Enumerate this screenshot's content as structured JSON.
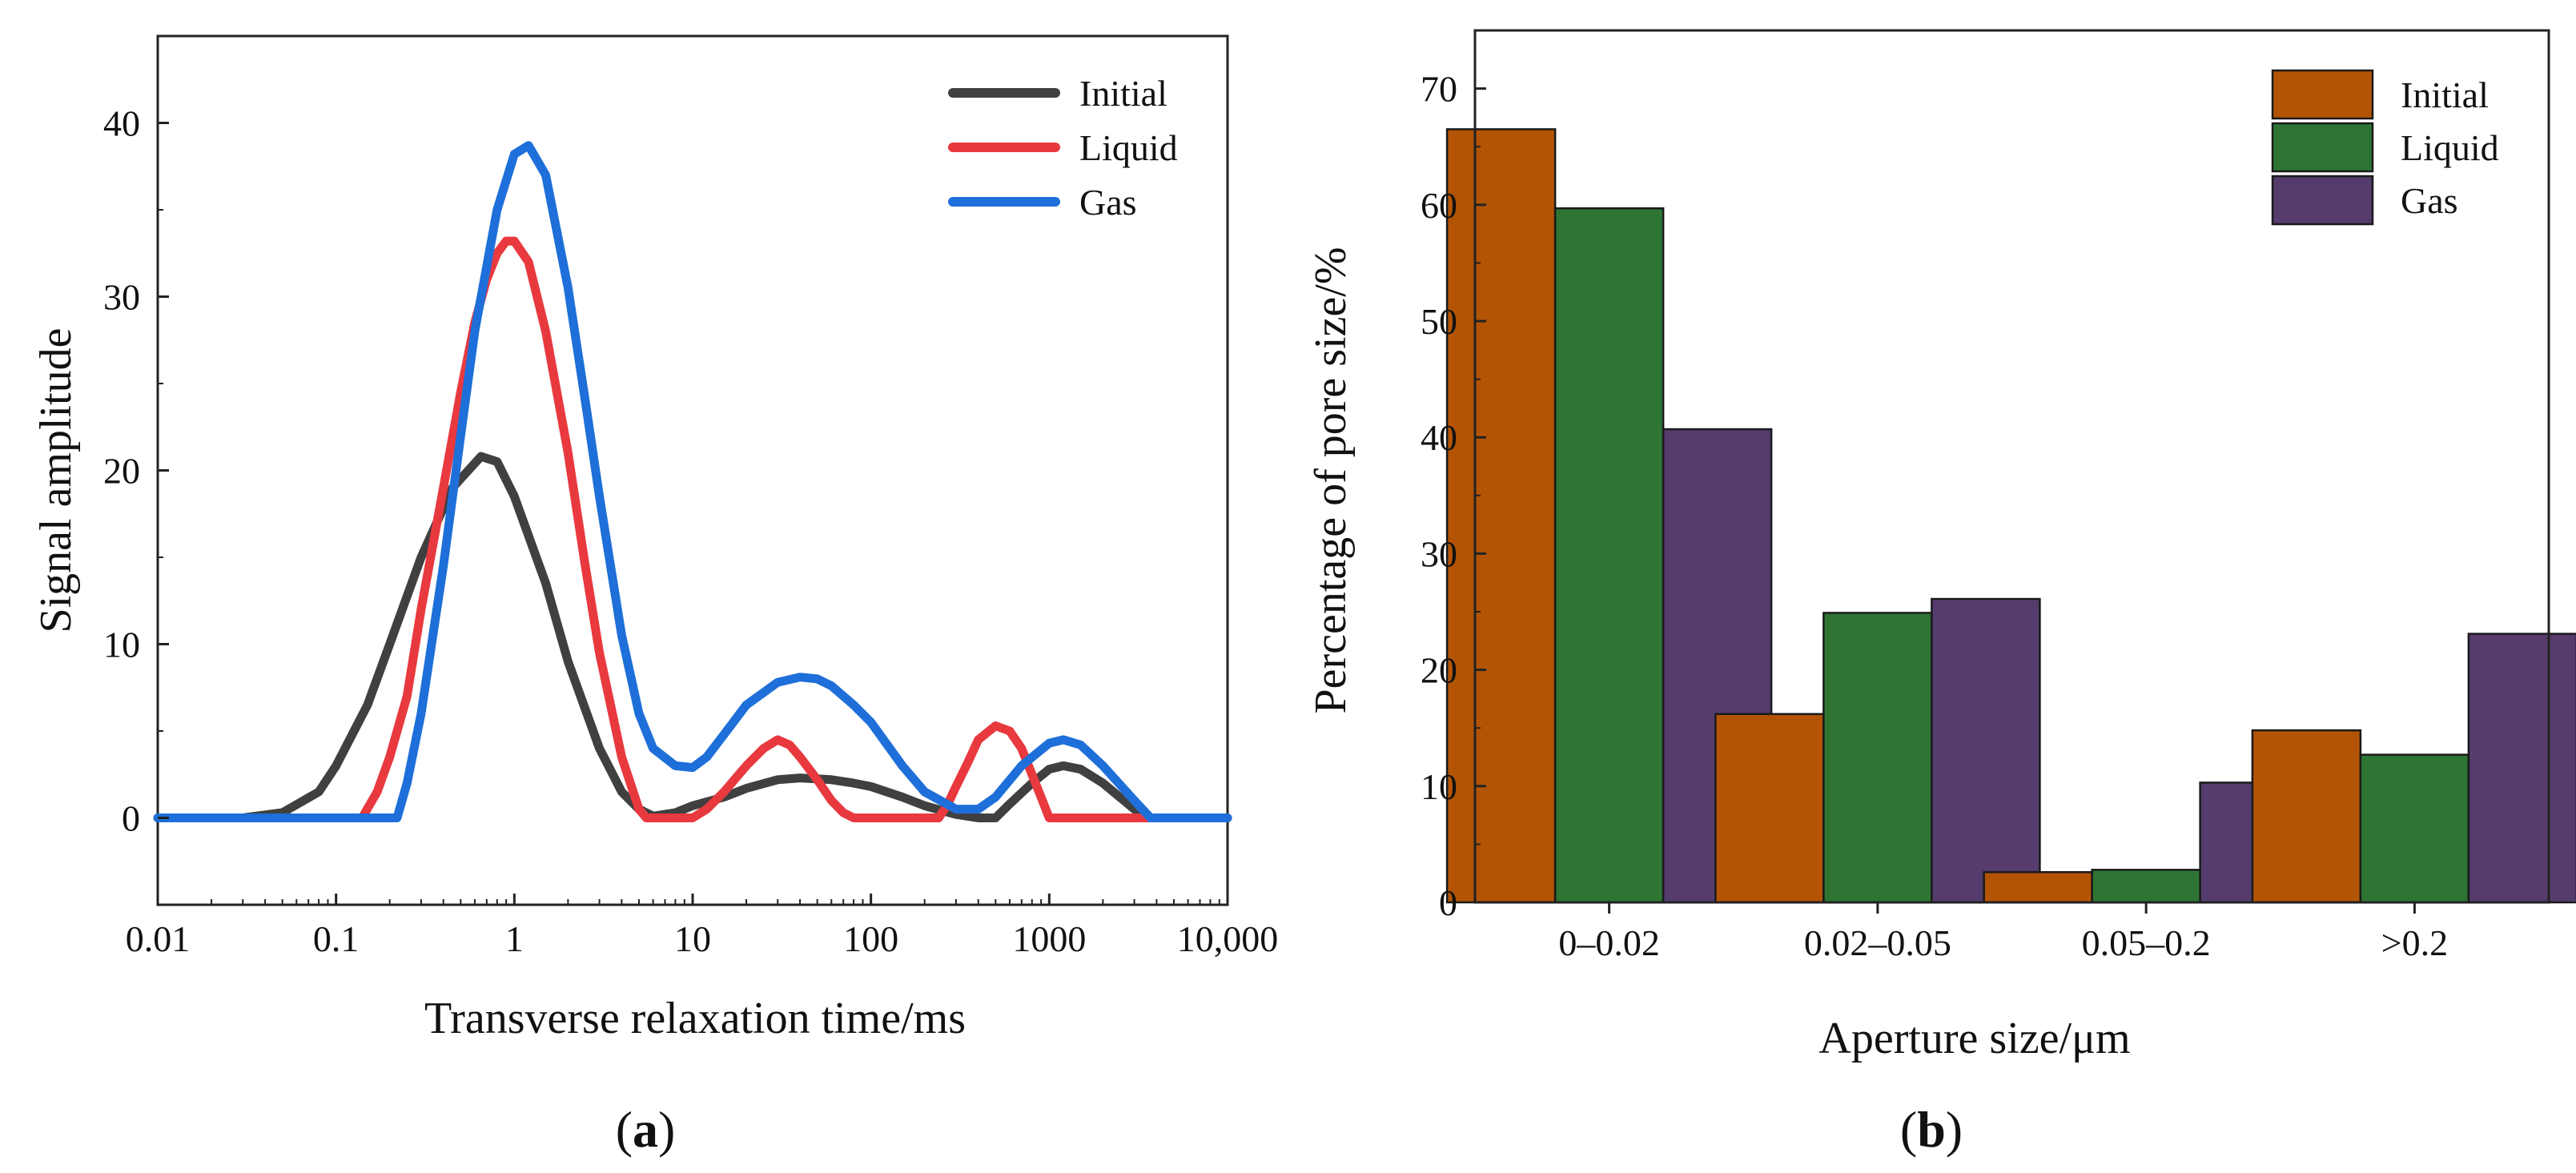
{
  "chart_data": [
    {
      "type": "line",
      "panel_label": {
        "open": "(",
        "letter": "a",
        "close": ")"
      },
      "xlabel": "Transverse relaxation time/ms",
      "ylabel": "Signal amplitude",
      "xscale": "log",
      "xlim": [
        0.01,
        10000
      ],
      "ylim": [
        -5,
        45
      ],
      "x_ticks": [
        0.01,
        0.1,
        1,
        10,
        100,
        1000,
        10000
      ],
      "x_tick_labels": [
        "0.01",
        "0.1",
        "1",
        "10",
        "100",
        "1000",
        "10,000"
      ],
      "y_ticks": [
        0,
        10,
        20,
        30,
        40
      ],
      "y_tick_labels": [
        "0",
        "10",
        "20",
        "30",
        "40"
      ],
      "legend_position": "top-right",
      "series": [
        {
          "name": "Initial",
          "color": "#404040",
          "x": [
            0.01,
            0.03,
            0.05,
            0.08,
            0.1,
            0.15,
            0.2,
            0.3,
            0.45,
            0.65,
            0.8,
            1.0,
            1.5,
            2.0,
            3.0,
            4.0,
            5.0,
            6.0,
            8.0,
            10,
            15,
            20,
            30,
            40,
            60,
            80,
            100,
            150,
            200,
            300,
            400,
            500,
            600,
            800,
            1000,
            1200,
            1500,
            2000,
            3000,
            3500,
            10000
          ],
          "y": [
            0,
            0,
            0.3,
            1.5,
            3.0,
            6.5,
            10.0,
            15.0,
            19.0,
            20.8,
            20.5,
            18.5,
            13.5,
            9.0,
            4.0,
            1.5,
            0.5,
            0.1,
            0.3,
            0.7,
            1.2,
            1.7,
            2.2,
            2.3,
            2.2,
            2.0,
            1.8,
            1.2,
            0.7,
            0.2,
            0,
            0,
            0.8,
            2.0,
            2.8,
            3.0,
            2.8,
            2.0,
            0.5,
            0,
            0
          ]
        },
        {
          "name": "Liquid",
          "color": "#e8393f",
          "x": [
            0.01,
            0.14,
            0.17,
            0.2,
            0.25,
            0.3,
            0.4,
            0.5,
            0.6,
            0.7,
            0.8,
            0.9,
            1.0,
            1.2,
            1.5,
            2.0,
            2.5,
            3.0,
            4.0,
            5.0,
            5.5,
            10,
            12,
            15,
            20,
            25,
            30,
            35,
            40,
            50,
            60,
            70,
            80,
            240,
            270,
            300,
            350,
            400,
            500,
            600,
            700,
            800,
            900,
            1000,
            10000
          ],
          "y": [
            0,
            0,
            1.5,
            3.5,
            7.0,
            12.0,
            19.0,
            24.5,
            28.5,
            31.0,
            32.5,
            33.2,
            33.2,
            32.0,
            28.0,
            21.0,
            14.5,
            9.5,
            3.5,
            0.5,
            0,
            0,
            0.5,
            1.5,
            3.0,
            4.0,
            4.5,
            4.2,
            3.5,
            2.2,
            1.0,
            0.3,
            0,
            0,
            0.8,
            1.8,
            3.2,
            4.5,
            5.3,
            5.0,
            4.0,
            2.5,
            1.2,
            0,
            0
          ]
        },
        {
          "name": "Gas",
          "color": "#1e6fd9",
          "x": [
            0.01,
            0.22,
            0.25,
            0.3,
            0.4,
            0.5,
            0.6,
            0.8,
            1.0,
            1.2,
            1.5,
            2.0,
            2.5,
            3.0,
            4.0,
            5.0,
            6.0,
            8.0,
            10,
            12,
            15,
            20,
            30,
            40,
            50,
            60,
            80,
            100,
            150,
            200,
            300,
            400,
            500,
            700,
            1000,
            1200,
            1500,
            2000,
            3000,
            3700,
            10000
          ],
          "y": [
            0,
            0,
            2.0,
            6.0,
            14.5,
            22.0,
            28.0,
            35.0,
            38.2,
            38.7,
            37.0,
            30.5,
            24.0,
            18.5,
            10.5,
            6.0,
            4.0,
            3.0,
            2.9,
            3.5,
            4.8,
            6.5,
            7.8,
            8.1,
            8.0,
            7.6,
            6.5,
            5.5,
            3.0,
            1.5,
            0.5,
            0.5,
            1.2,
            3.0,
            4.3,
            4.5,
            4.2,
            3.0,
            1.0,
            0,
            0
          ]
        }
      ]
    },
    {
      "type": "bar",
      "panel_label": {
        "open": "(",
        "letter": "b",
        "close": ")"
      },
      "xlabel": "Aperture size/μm",
      "ylabel": "Percentage of pore size/%",
      "ylim": [
        0,
        75
      ],
      "y_ticks": [
        0,
        10,
        20,
        30,
        40,
        50,
        60,
        70
      ],
      "y_tick_labels": [
        "0",
        "10",
        "20",
        "30",
        "40",
        "50",
        "60",
        "70"
      ],
      "categories": [
        "0–0.02",
        "0.02–0.05",
        "0.05–0.2",
        ">0.2"
      ],
      "legend_position": "top-right",
      "series": [
        {
          "name": "Initial",
          "color": "#b35405",
          "values": [
            66.5,
            16.2,
            2.6,
            14.8
          ]
        },
        {
          "name": "Liquid",
          "color": "#2e7534",
          "values": [
            59.7,
            24.9,
            2.8,
            12.7
          ]
        },
        {
          "name": "Gas",
          "color": "#553c6d",
          "values": [
            40.7,
            26.1,
            10.3,
            23.1
          ]
        }
      ]
    }
  ]
}
